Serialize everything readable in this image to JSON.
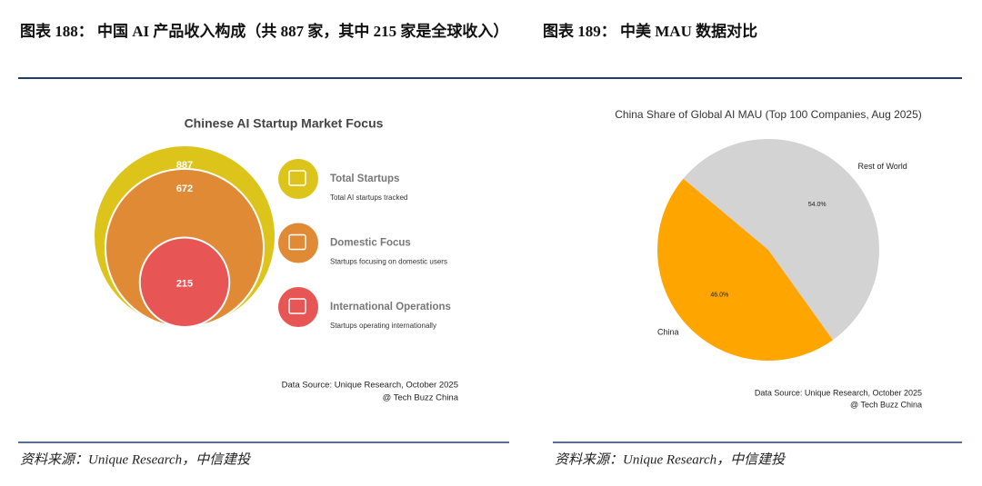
{
  "header": {
    "titles": [
      "图表 188：  中国 AI 产品收入构成（共 887 家，其中 215 家是全球收入）",
      "图表 189：  中美 MAU 数据对比"
    ]
  },
  "chart_data": [
    {
      "type": "nested-circle",
      "title": "Chinese AI Startup Market Focus",
      "categories": [
        "Total Startups",
        "Domestic Focus",
        "International Operations"
      ],
      "descriptions": [
        "Total AI startups tracked",
        "Startups focusing on domestic users",
        "Startups operating internationally"
      ],
      "values": [
        887,
        672,
        215
      ],
      "colors": [
        "#dcc41a",
        "#e08a35",
        "#e85555"
      ],
      "source": [
        "Data Source: Unique Research, October 2025",
        "@ Tech Buzz China"
      ]
    },
    {
      "type": "pie",
      "title": "China Share of Global AI MAU (Top 100 Companies, Aug 2025)",
      "categories": [
        "China",
        "Rest of World"
      ],
      "values": [
        46.0,
        54.0
      ],
      "value_labels": [
        "46.0%",
        "54.0%"
      ],
      "colors": [
        "#ffa500",
        "#d3d3d3"
      ],
      "source": [
        "Data Source: Unique Research, October 2025",
        "@ Tech Buzz China"
      ]
    }
  ],
  "footer": {
    "sources": [
      "资料来源：Unique Research，中信建投",
      "资料来源：Unique Research，中信建投"
    ]
  }
}
